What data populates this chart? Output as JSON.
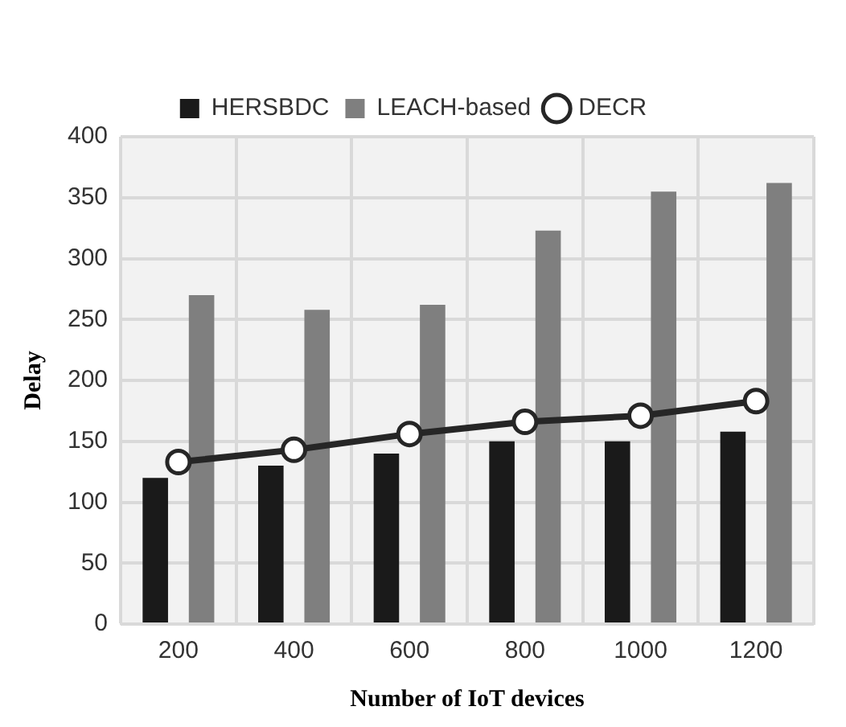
{
  "chart_data": {
    "type": "bar",
    "xlabel": "Number of IoT devices",
    "ylabel": "Delay",
    "categories": [
      "200",
      "400",
      "600",
      "800",
      "1000",
      "1200"
    ],
    "series": [
      {
        "name": "HERSBDC",
        "color": "#1a1a1a",
        "values": [
          120,
          130,
          140,
          150,
          150,
          158
        ]
      },
      {
        "name": "LEACH-based",
        "color": "#7f7f7f",
        "values": [
          270,
          258,
          262,
          323,
          355,
          362
        ]
      },
      {
        "name": "DECR",
        "type": "line",
        "color": "#262626",
        "values": [
          133,
          143,
          156,
          166,
          171,
          183
        ]
      }
    ],
    "ylim": [
      0,
      400
    ],
    "yticks": [
      0,
      50,
      100,
      150,
      200,
      250,
      300,
      350,
      400
    ],
    "grid": true,
    "legend": "top",
    "marker": "circle",
    "line_style": "solid"
  }
}
